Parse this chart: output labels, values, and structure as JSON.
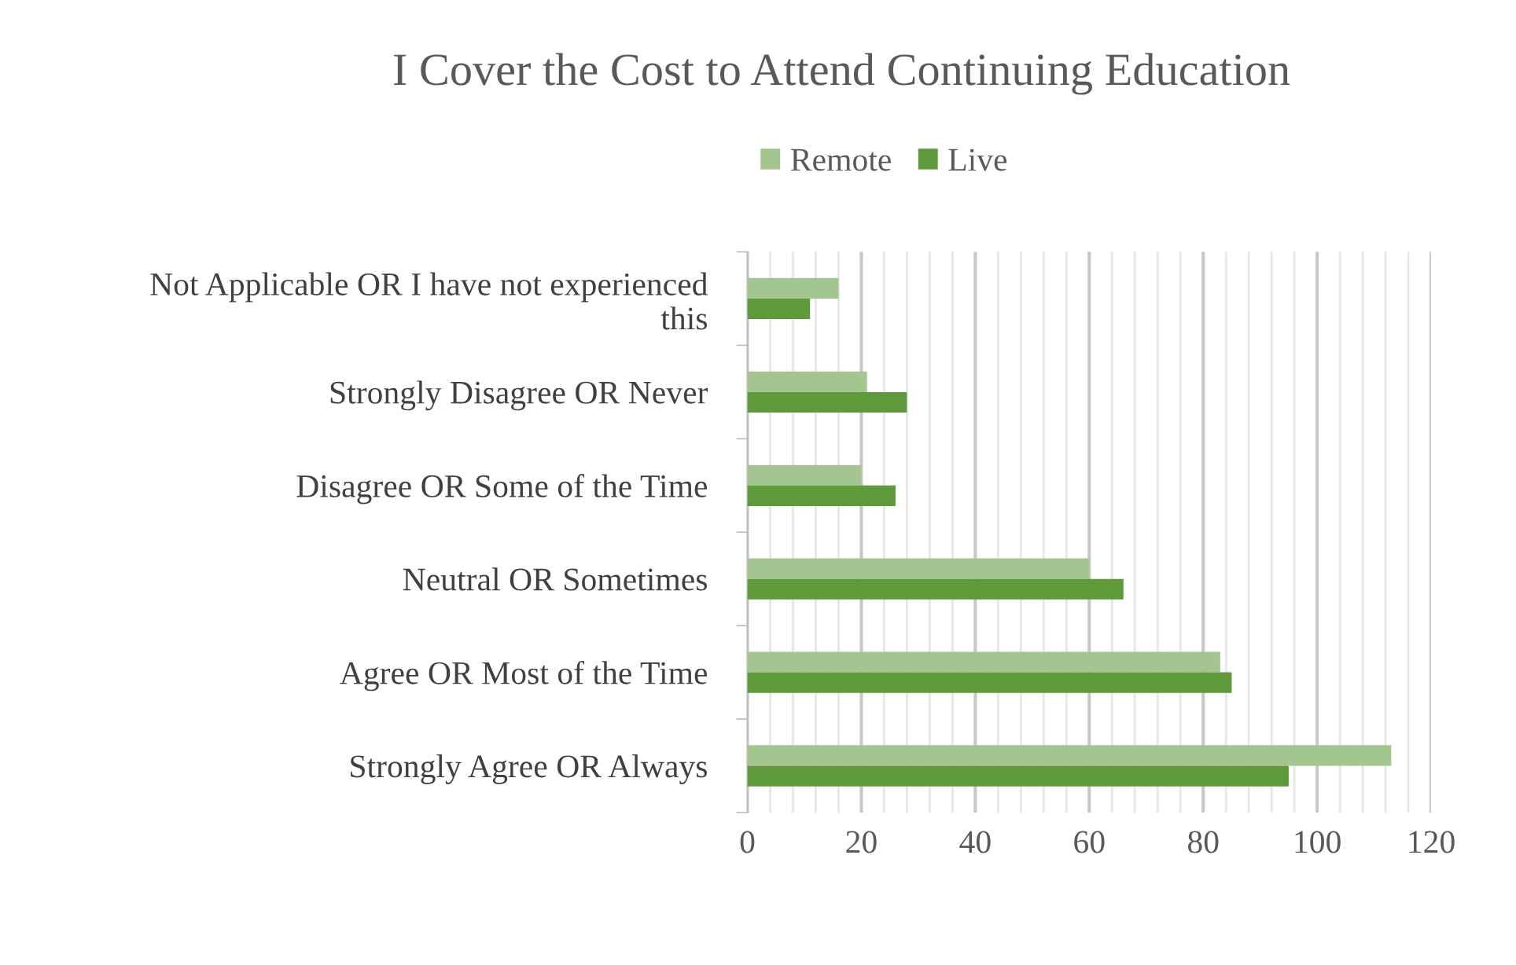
{
  "chart_data": {
    "type": "bar",
    "orientation": "horizontal",
    "title": "I Cover the Cost to Attend Continuing Education",
    "categories": [
      "Not Applicable OR I have not experienced\nthis",
      "Strongly Disagree OR Never",
      "Disagree OR Some of the Time",
      "Neutral OR Sometimes",
      "Agree OR Most of the Time",
      "Strongly Agree OR Always"
    ],
    "series": [
      {
        "name": "Remote",
        "color": "#a3c58f",
        "values": [
          16,
          21,
          20,
          60,
          83,
          113
        ]
      },
      {
        "name": "Live",
        "color": "#5e9a3a",
        "values": [
          11,
          28,
          26,
          66,
          85,
          95
        ]
      }
    ],
    "xlim": [
      0,
      120
    ],
    "xticks": [
      0,
      {
        "value": 4,
        "label": null
      },
      {
        "value": 8,
        "label": null
      },
      {
        "value": 12,
        "label": null
      },
      {
        "value": 16,
        "label": null
      },
      20,
      {
        "value": 24,
        "label": null
      },
      {
        "value": 28,
        "label": null
      },
      {
        "value": 32,
        "label": null
      },
      {
        "value": 36,
        "label": null
      },
      40,
      {
        "value": 44,
        "label": null
      },
      {
        "value": 48,
        "label": null
      },
      {
        "value": 52,
        "label": null
      },
      {
        "value": 56,
        "label": null
      },
      60,
      {
        "value": 64,
        "label": null
      },
      {
        "value": 68,
        "label": null
      },
      {
        "value": 72,
        "label": null
      },
      {
        "value": 76,
        "label": null
      },
      80,
      {
        "value": 84,
        "label": null
      },
      {
        "value": 88,
        "label": null
      },
      {
        "value": 92,
        "label": null
      },
      {
        "value": 96,
        "label": null
      },
      100,
      {
        "value": 104,
        "label": null
      },
      {
        "value": 108,
        "label": null
      },
      {
        "value": 112,
        "label": null
      },
      {
        "value": 116,
        "label": null
      },
      120
    ],
    "grid": "x",
    "legend": "top"
  }
}
